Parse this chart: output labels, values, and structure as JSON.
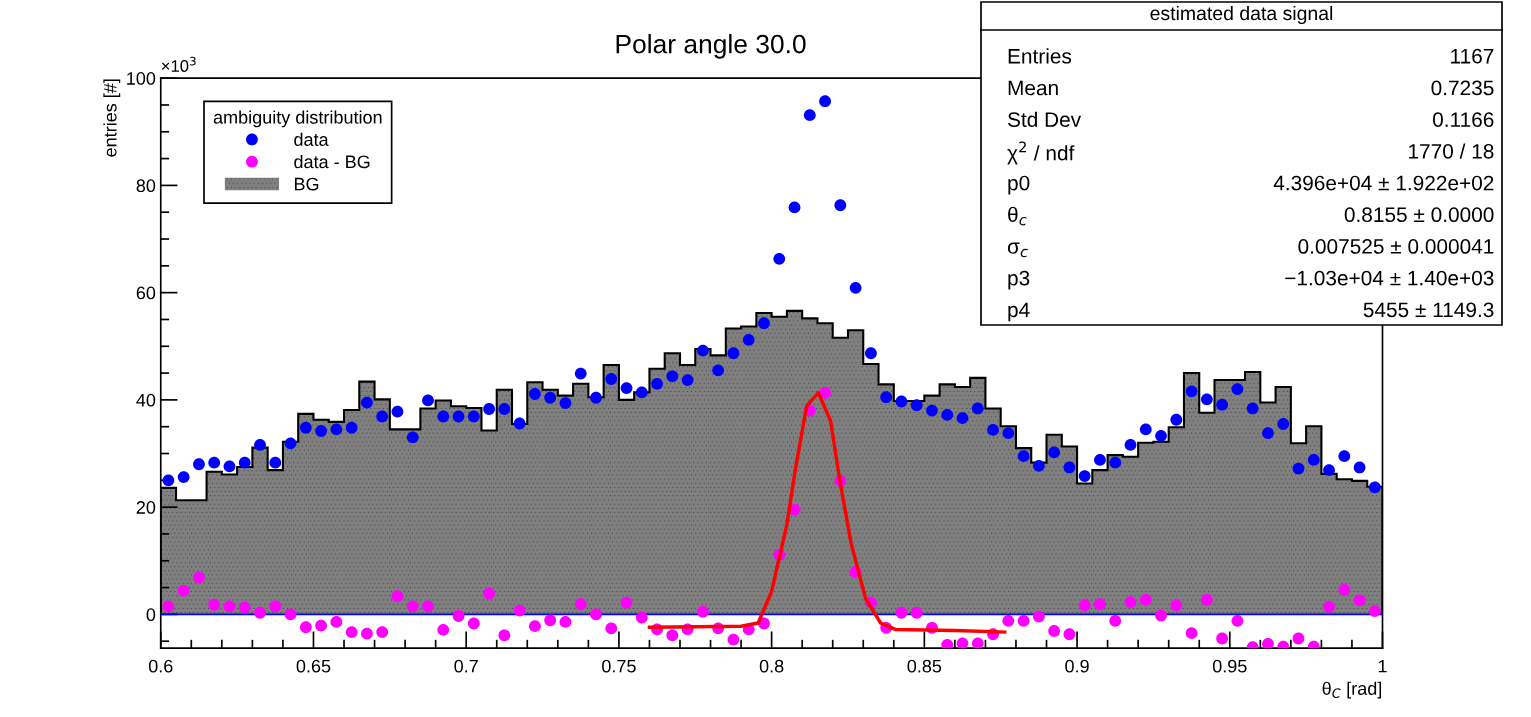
{
  "chart_data": {
    "type": "histogram",
    "title": "Polar angle 30.0",
    "xlabel": "θ$_{C}$ [rad]",
    "ylabel": "entries [#]",
    "legend_title": "ambiguity distribution",
    "legend": "top left",
    "grid": false,
    "marker": "circle",
    "xlim": [
      0.6,
      1
    ],
    "ylim": [
      -6.3,
      100
    ],
    "xticks": [
      0.6,
      0.65,
      0.7,
      0.75,
      0.8,
      0.85,
      0.9,
      0.95,
      1
    ],
    "yticks": [
      0,
      20,
      40,
      60,
      80,
      100
    ],
    "bins": [
      0.6,
      0.605,
      0.61,
      0.615,
      0.62,
      0.625,
      0.63,
      0.635,
      0.64,
      0.645,
      0.65,
      0.655,
      0.66,
      0.665,
      0.67,
      0.675,
      0.68,
      0.685,
      0.69,
      0.695,
      0.7,
      0.705,
      0.71,
      0.715,
      0.72,
      0.725,
      0.73,
      0.735,
      0.74,
      0.745,
      0.75,
      0.755,
      0.76,
      0.765,
      0.77,
      0.775,
      0.78,
      0.785,
      0.79,
      0.795,
      0.8,
      0.805,
      0.81,
      0.815,
      0.82,
      0.825,
      0.83,
      0.835,
      0.84,
      0.845,
      0.85,
      0.855,
      0.86,
      0.865,
      0.87,
      0.875,
      0.88,
      0.885,
      0.89,
      0.895,
      0.9,
      0.905,
      0.91,
      0.915,
      0.92,
      0.925,
      0.93,
      0.935,
      0.94,
      0.945,
      0.95,
      0.955,
      0.96,
      0.965,
      0.97,
      0.975,
      0.98,
      0.985,
      0.99,
      0.995,
      1
    ],
    "x": [
      0.6025,
      0.6075,
      0.6125,
      0.6175,
      0.6225,
      0.6275,
      0.6325,
      0.6375,
      0.6425,
      0.6475,
      0.6525,
      0.6575,
      0.6625,
      0.6675,
      0.6725,
      0.6775,
      0.6825,
      0.6875,
      0.6925,
      0.6975,
      0.7025,
      0.7075,
      0.7125,
      0.7175,
      0.7225,
      0.7275,
      0.7325,
      0.7375,
      0.7425,
      0.7475,
      0.7525,
      0.7575,
      0.7625,
      0.7675,
      0.7725,
      0.7775,
      0.7825,
      0.7875,
      0.7925,
      0.7975,
      0.8025,
      0.8075,
      0.8125,
      0.8175,
      0.8225,
      0.8275,
      0.8325,
      0.8375,
      0.8425,
      0.8475,
      0.8525,
      0.8575,
      0.8625,
      0.8675,
      0.8725,
      0.8775,
      0.8825,
      0.8875,
      0.8925,
      0.8975,
      0.9025,
      0.9075,
      0.9125,
      0.9175,
      0.9225,
      0.9275,
      0.9325,
      0.9375,
      0.9425,
      0.9475,
      0.9525,
      0.9575,
      0.9625,
      0.9675,
      0.9725,
      0.9775,
      0.9825,
      0.9875,
      0.9925,
      0.9975
    ],
    "series": [
      {
        "name": "BG",
        "color": "#808080",
        "values": [
          23.6,
          21.3,
          21.3,
          26.6,
          26.1,
          27.5,
          31.1,
          26.9,
          32.2,
          37.4,
          36.3,
          35.9,
          38.1,
          43.4,
          40.1,
          34.5,
          34.5,
          38.4,
          39.9,
          38.8,
          38.5,
          34.3,
          41.9,
          35.5,
          43.3,
          41.9,
          40.8,
          43,
          40.5,
          46.5,
          40,
          41.4,
          45.8,
          48.7,
          46.5,
          49.5,
          48.3,
          53.3,
          53.7,
          56.2,
          55.5,
          56.6,
          55.2,
          54.3,
          51.6,
          53,
          46.7,
          42.9,
          39.8,
          39.8,
          40.8,
          42.9,
          42.4,
          44.1,
          38.4,
          35.1,
          31,
          28.3,
          33.5,
          31.3,
          24.4,
          26.9,
          29.7,
          29.4,
          32,
          32.2,
          34.9,
          45,
          37.6,
          43.7,
          43.7,
          45.2,
          39.5,
          42.4,
          31.9,
          35.1,
          26.2,
          25.2,
          24.9,
          23.8
        ]
      },
      {
        "name": "data",
        "type": "scatter",
        "color": "#0000ff",
        "values": [
          25,
          25.6,
          28,
          28.3,
          27.6,
          28.3,
          31.6,
          28.3,
          31.9,
          34.8,
          34.2,
          34.5,
          34.8,
          39.5,
          36.9,
          37.8,
          33,
          39.9,
          36.9,
          36.9,
          36.9,
          38.3,
          38.3,
          35.6,
          41.1,
          40.4,
          39.4,
          44.9,
          40.4,
          43.9,
          42.2,
          41.4,
          43,
          44.4,
          43.7,
          49.2,
          45.5,
          48.7,
          51.2,
          54.3,
          66.3,
          75.9,
          93.1,
          95.7,
          76.3,
          60.9,
          48.7,
          40.5,
          39.7,
          39,
          38,
          37.2,
          36.6,
          38.4,
          34.4,
          33.8,
          29.5,
          27.7,
          30.2,
          27.4,
          25.8,
          28.8,
          28.3,
          31.6,
          34.5,
          33.3,
          36.3,
          41.6,
          40.1,
          39.1,
          42,
          38.4,
          33.8,
          35.5,
          27.2,
          28.8,
          26.9,
          29.5,
          27.4,
          23.7
        ]
      },
      {
        "name": "data - BG",
        "type": "scatter",
        "color": "#ff00ff",
        "values": [
          1.5,
          4.4,
          6.9,
          1.8,
          1.5,
          1.3,
          0.3,
          1.5,
          0,
          -2.4,
          -2.1,
          -1.4,
          -3.3,
          -3.6,
          -3.3,
          3.4,
          1.5,
          1.5,
          -2.9,
          -0.3,
          -1.7,
          3.9,
          -3.9,
          0.7,
          -2.2,
          -1.1,
          -1.4,
          1.9,
          0,
          -2.6,
          2.2,
          -0.6,
          -2.8,
          -3.9,
          -2.8,
          0.5,
          -2.6,
          -4.7,
          -2.8,
          -1.7,
          11.1,
          19.5,
          38,
          41.3,
          24.9,
          7.9,
          2.2,
          -2.5,
          0.3,
          0.3,
          -2.5,
          -5.7,
          -5.4,
          -5.4,
          -3.7,
          -1.2,
          -1.2,
          -0.4,
          -3.1,
          -3.7,
          1.7,
          1.9,
          -1.2,
          2.3,
          2.7,
          -0.2,
          1.7,
          -3.5,
          2.7,
          -4.5,
          -1.2,
          -6.1,
          -5.5,
          -6,
          -4.5,
          -6,
          1.4,
          4.6,
          2.6,
          0.6
        ]
      },
      {
        "type": "line",
        "color": "#ff0000",
        "marker": "none",
        "x": [
          0.76,
          0.79,
          0.7956,
          0.8,
          0.805,
          0.8078,
          0.8115,
          0.8153,
          0.8193,
          0.8223,
          0.826,
          0.8308,
          0.8357,
          0.8405,
          0.86,
          0.8763
        ],
        "values": [
          -2.4,
          -2.2,
          -1.6,
          4.3,
          16.8,
          27.1,
          38.9,
          41.3,
          36.1,
          25.1,
          13.3,
          2.9,
          -1.6,
          -2.8,
          -3,
          -3.3
        ]
      }
    ],
    "ref_lines": [
      {
        "axis": "y",
        "value": 0,
        "color": "#0000ff"
      }
    ],
    "annotations": [
      "×10$^{3}$",
      "estimated data signal",
      "Entries",
      "1167",
      "Mean",
      "0.7235",
      "Std Dev",
      "0.1166",
      "χ$^{2}$ / ndf",
      "1770 / 18",
      "p0",
      "4.396e+04 ± 1.922e+02",
      "θ$_{c}$",
      "0.8155 ± 0.0000",
      "σ$_{c}$",
      "0.007525 ± 0.000041",
      "p3",
      "−1.03e+04 ± 1.40e+03",
      "p4",
      "5455 ± 1149.3"
    ]
  }
}
